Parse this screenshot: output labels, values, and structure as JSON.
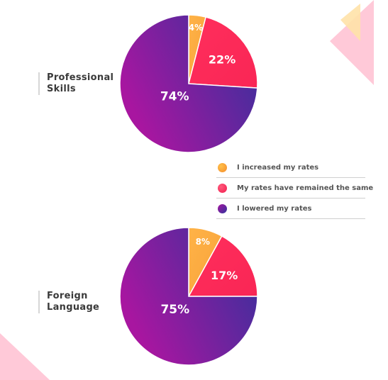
{
  "colors": {
    "increased": "#f7a23a",
    "same": "#f92655",
    "lowered_start": "#a816a0",
    "lowered_end": "#30329c",
    "deco_pink": "#ffc9d8",
    "deco_yellow": "#ffe2a8"
  },
  "legend": [
    {
      "label": "I increased my rates",
      "icon": "orange-dot"
    },
    {
      "label": "My rates have remained the same",
      "icon": "red-dot"
    },
    {
      "label": "I lowered my rates",
      "icon": "purple-dot"
    }
  ],
  "chart_data": [
    {
      "type": "pie",
      "title": "Professional Skills",
      "title_lines": [
        "Professional",
        "Skills"
      ],
      "categories": [
        "I increased my rates",
        "My rates have remained the same",
        "I lowered my rates"
      ],
      "values": [
        4,
        22,
        74
      ],
      "labels": [
        "4%",
        "22%",
        "74%"
      ]
    },
    {
      "type": "pie",
      "title": "Foreign Language",
      "title_lines": [
        "Foreign",
        "Language"
      ],
      "categories": [
        "I increased my rates",
        "My rates have remained the same",
        "I lowered my rates"
      ],
      "values": [
        8,
        17,
        75
      ],
      "labels": [
        "8%",
        "17%",
        "75%"
      ]
    }
  ]
}
